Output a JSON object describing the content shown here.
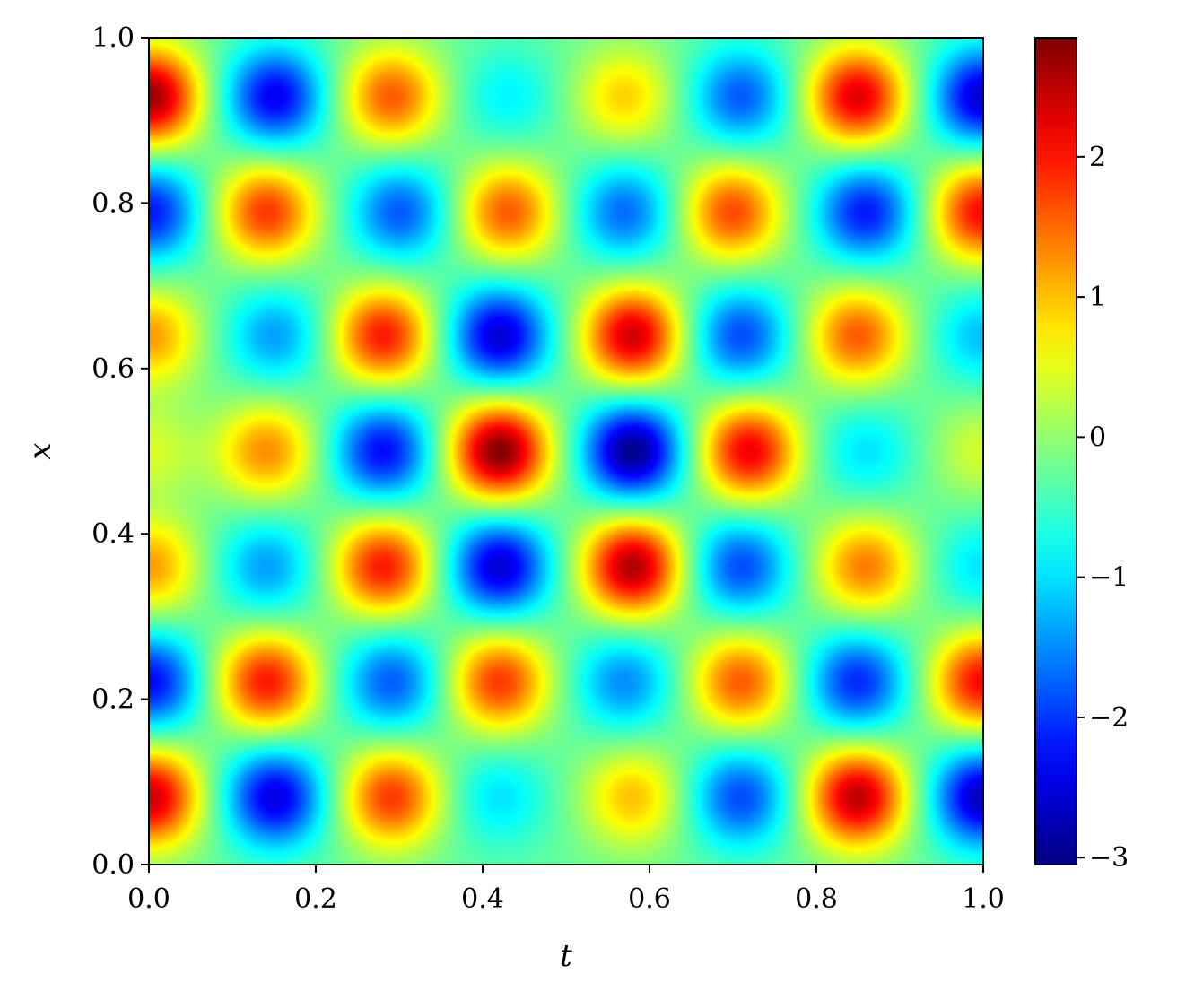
{
  "chart_data": {
    "type": "heatmap",
    "title": "",
    "xlabel": "t",
    "ylabel": "x",
    "xlim": [
      0,
      1
    ],
    "ylim": [
      0,
      1
    ],
    "x_ticks": [
      0.0,
      0.2,
      0.4,
      0.6,
      0.8,
      1.0
    ],
    "x_tick_labels": [
      "0.0",
      "0.2",
      "0.4",
      "0.6",
      "0.8",
      "1.0"
    ],
    "y_ticks": [
      0.0,
      0.2,
      0.4,
      0.6,
      0.8,
      1.0
    ],
    "y_tick_labels": [
      "0.0",
      "0.2",
      "0.4",
      "0.6",
      "0.8",
      "1.0"
    ],
    "colormap": "jet",
    "colorbar": {
      "range": [
        -3.05,
        2.85
      ],
      "ticks": [
        2,
        1,
        0,
        -1,
        -2,
        -3
      ],
      "tick_labels": [
        "2",
        "1",
        "0",
        "−1",
        "−2",
        "−3"
      ]
    },
    "grid": false,
    "field_extrema": [
      {
        "t": 0.0,
        "x": 0.93,
        "value": 2.7
      },
      {
        "t": 0.15,
        "x": 0.93,
        "value": -2.4
      },
      {
        "t": 0.29,
        "x": 0.93,
        "value": 1.6
      },
      {
        "t": 0.43,
        "x": 0.93,
        "value": -0.9
      },
      {
        "t": 0.57,
        "x": 0.93,
        "value": 0.9
      },
      {
        "t": 0.71,
        "x": 0.93,
        "value": -1.8
      },
      {
        "t": 0.85,
        "x": 0.93,
        "value": 2.3
      },
      {
        "t": 1.0,
        "x": 0.93,
        "value": -2.6
      },
      {
        "t": 0.0,
        "x": 0.79,
        "value": -2.2
      },
      {
        "t": 0.14,
        "x": 0.79,
        "value": 1.8
      },
      {
        "t": 0.3,
        "x": 0.79,
        "value": -1.8
      },
      {
        "t": 0.43,
        "x": 0.79,
        "value": 1.6
      },
      {
        "t": 0.57,
        "x": 0.79,
        "value": -1.7
      },
      {
        "t": 0.7,
        "x": 0.79,
        "value": 1.7
      },
      {
        "t": 0.86,
        "x": 0.79,
        "value": -2.2
      },
      {
        "t": 1.0,
        "x": 0.79,
        "value": 2.1
      },
      {
        "t": 0.0,
        "x": 0.64,
        "value": 1.2
      },
      {
        "t": 0.15,
        "x": 0.64,
        "value": -1.4
      },
      {
        "t": 0.28,
        "x": 0.64,
        "value": 2.0
      },
      {
        "t": 0.42,
        "x": 0.64,
        "value": -2.6
      },
      {
        "t": 0.58,
        "x": 0.64,
        "value": 2.4
      },
      {
        "t": 0.71,
        "x": 0.64,
        "value": -1.9
      },
      {
        "t": 0.85,
        "x": 0.64,
        "value": 1.6
      },
      {
        "t": 1.0,
        "x": 0.64,
        "value": -1.2
      },
      {
        "t": 0.0,
        "x": 0.5,
        "value": 0.4
      },
      {
        "t": 0.14,
        "x": 0.5,
        "value": 1.3
      },
      {
        "t": 0.28,
        "x": 0.5,
        "value": -2.3
      },
      {
        "t": 0.42,
        "x": 0.5,
        "value": 2.85
      },
      {
        "t": 0.58,
        "x": 0.5,
        "value": -3.0
      },
      {
        "t": 0.72,
        "x": 0.5,
        "value": 2.2
      },
      {
        "t": 0.86,
        "x": 0.5,
        "value": -1.0
      },
      {
        "t": 1.0,
        "x": 0.5,
        "value": 0.4
      },
      {
        "t": 0.0,
        "x": 0.36,
        "value": 1.2
      },
      {
        "t": 0.14,
        "x": 0.36,
        "value": -1.4
      },
      {
        "t": 0.28,
        "x": 0.36,
        "value": 2.0
      },
      {
        "t": 0.42,
        "x": 0.36,
        "value": -2.6
      },
      {
        "t": 0.58,
        "x": 0.36,
        "value": 2.6
      },
      {
        "t": 0.71,
        "x": 0.36,
        "value": -1.9
      },
      {
        "t": 0.86,
        "x": 0.36,
        "value": 1.4
      },
      {
        "t": 1.0,
        "x": 0.36,
        "value": -1.0
      },
      {
        "t": 0.0,
        "x": 0.22,
        "value": -2.3
      },
      {
        "t": 0.14,
        "x": 0.22,
        "value": 2.0
      },
      {
        "t": 0.29,
        "x": 0.22,
        "value": -1.8
      },
      {
        "t": 0.42,
        "x": 0.22,
        "value": 1.8
      },
      {
        "t": 0.57,
        "x": 0.22,
        "value": -1.5
      },
      {
        "t": 0.71,
        "x": 0.22,
        "value": 1.6
      },
      {
        "t": 0.85,
        "x": 0.22,
        "value": -2.1
      },
      {
        "t": 1.0,
        "x": 0.22,
        "value": 2.1
      },
      {
        "t": 0.0,
        "x": 0.08,
        "value": 2.4
      },
      {
        "t": 0.15,
        "x": 0.08,
        "value": -2.5
      },
      {
        "t": 0.29,
        "x": 0.08,
        "value": 1.8
      },
      {
        "t": 0.42,
        "x": 0.08,
        "value": -1.0
      },
      {
        "t": 0.58,
        "x": 0.08,
        "value": 1.0
      },
      {
        "t": 0.71,
        "x": 0.08,
        "value": -1.9
      },
      {
        "t": 0.85,
        "x": 0.08,
        "value": 2.5
      },
      {
        "t": 1.0,
        "x": 0.08,
        "value": -2.7
      }
    ]
  }
}
